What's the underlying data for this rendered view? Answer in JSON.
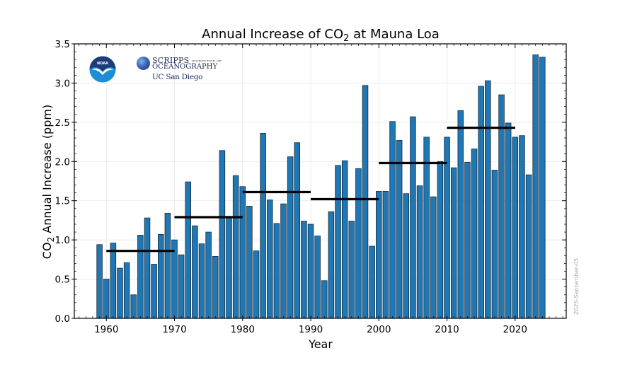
{
  "chart_data": {
    "type": "bar",
    "title": "Annual Increase of CO₂ at Mauna Loa",
    "title_parts": {
      "pre": "Annual Increase of CO",
      "sub": "2",
      "post": " at Mauna Loa"
    },
    "xlabel": "Year",
    "ylabel": "CO₂ Annual Increase (ppm)",
    "ylabel_parts": {
      "pre": "CO",
      "sub": "2",
      "post": " Annual Increase (ppm)"
    },
    "xlim": [
      1955.3,
      2027.5
    ],
    "ylim": [
      0,
      3.5
    ],
    "xticks": [
      1960,
      1970,
      1980,
      1990,
      2000,
      2010,
      2020
    ],
    "xtick_labels": [
      "1960",
      "1970",
      "1980",
      "1990",
      "2000",
      "2010",
      "2020"
    ],
    "yticks": [
      0.0,
      0.5,
      1.0,
      1.5,
      2.0,
      2.5,
      3.0,
      3.5
    ],
    "ytick_labels": [
      "0.0",
      "0.5",
      "1.0",
      "1.5",
      "2.0",
      "2.5",
      "3.0",
      "3.5"
    ],
    "grid": true,
    "bar_color": "#1f77b4",
    "bar_edge_color": "#1a2a3a",
    "decade_mean_color": "#000000",
    "years": [
      1959,
      1960,
      1961,
      1962,
      1963,
      1964,
      1965,
      1966,
      1967,
      1968,
      1969,
      1970,
      1971,
      1972,
      1973,
      1974,
      1975,
      1976,
      1977,
      1978,
      1979,
      1980,
      1981,
      1982,
      1983,
      1984,
      1985,
      1986,
      1987,
      1988,
      1989,
      1990,
      1991,
      1992,
      1993,
      1994,
      1995,
      1996,
      1997,
      1998,
      1999,
      2000,
      2001,
      2002,
      2003,
      2004,
      2005,
      2006,
      2007,
      2008,
      2009,
      2010,
      2011,
      2012,
      2013,
      2014,
      2015,
      2016,
      2017,
      2018,
      2019,
      2020,
      2021,
      2022,
      2023,
      2024
    ],
    "values": [
      0.94,
      0.5,
      0.96,
      0.64,
      0.71,
      0.3,
      1.06,
      1.28,
      0.69,
      1.07,
      1.34,
      1.0,
      0.81,
      1.74,
      1.18,
      0.95,
      1.1,
      0.79,
      2.14,
      1.3,
      1.82,
      1.68,
      1.43,
      0.86,
      2.36,
      1.51,
      1.21,
      1.46,
      2.06,
      2.24,
      1.24,
      1.2,
      1.05,
      0.48,
      1.36,
      1.95,
      2.01,
      1.24,
      1.91,
      2.97,
      0.92,
      1.62,
      1.62,
      2.51,
      2.27,
      1.59,
      2.57,
      1.69,
      2.31,
      1.55,
      2.0,
      2.31,
      1.92,
      2.65,
      1.99,
      2.16,
      2.96,
      3.03,
      1.89,
      2.85,
      2.49,
      2.31,
      2.33,
      1.83,
      3.36,
      3.33
    ],
    "decade_means": [
      {
        "start": 1960,
        "end": 1970,
        "value": 0.86
      },
      {
        "start": 1970,
        "end": 1980,
        "value": 1.29
      },
      {
        "start": 1980,
        "end": 1990,
        "value": 1.61
      },
      {
        "start": 1990,
        "end": 2000,
        "value": 1.52
      },
      {
        "start": 2000,
        "end": 2010,
        "value": 1.98
      },
      {
        "start": 2010,
        "end": 2020,
        "value": 2.43
      }
    ],
    "annotation": "2025-September-05"
  },
  "logos": {
    "noaa": "NOAA",
    "scripps_line1": "SCRIPPS",
    "scripps_small": "INSTITUTION OF",
    "scripps_line2": "OCEANOGRAPHY",
    "ucsd": "UC San Diego"
  }
}
